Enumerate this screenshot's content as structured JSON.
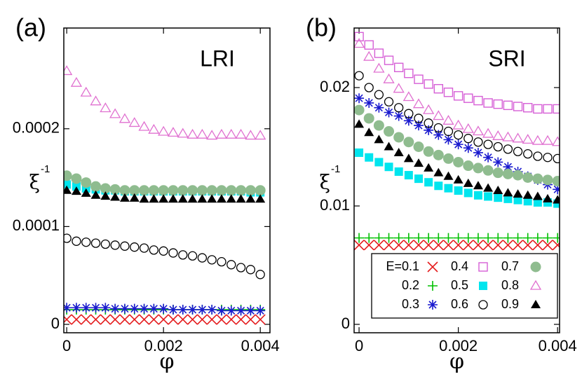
{
  "chart_data": [
    {
      "type": "scatter",
      "panel_label": "(a)",
      "annotation": "LRI",
      "xlabel": "φ",
      "ylabel": "ξ",
      "ylabel_superscript": "-1",
      "xlim": [
        -6e-05,
        0.0042
      ],
      "ylim": [
        -8.6e-06,
        0.000303
      ],
      "xticks": [
        0,
        0.002,
        0.004
      ],
      "yticks": [
        0,
        0.0001,
        0.0002
      ],
      "x": [
        0,
        0.0002,
        0.0004,
        0.0006,
        0.0008,
        0.001,
        0.0012,
        0.0014,
        0.0016,
        0.0018,
        0.002,
        0.0022,
        0.0024,
        0.0026,
        0.0028,
        0.003,
        0.0032,
        0.0034,
        0.0036,
        0.0038,
        0.004
      ],
      "series": [
        {
          "color": "#e41a1c",
          "marker": "x",
          "values": [
            5e-06,
            5e-06,
            5e-06,
            5e-06,
            5e-06,
            5e-06,
            5e-06,
            5e-06,
            5e-06,
            5e-06,
            5e-06,
            5e-06,
            5e-06,
            5e-06,
            5e-06,
            5e-06,
            5e-06,
            5e-06,
            5e-06,
            5e-06,
            5e-06
          ]
        },
        {
          "color": "#00c000",
          "marker": "plus",
          "values": [
            1.5e-05,
            1.5e-05,
            1.5e-05,
            1.5e-05,
            1.5e-05,
            1.5e-05,
            1.5e-05,
            1.5e-05,
            1.5e-05,
            1.5e-05,
            1.5e-05,
            1.5e-05,
            1.5e-05,
            1.5e-05,
            1.5e-05,
            1.5e-05,
            1.5e-05,
            1.5e-05,
            1.5e-05,
            1.5e-05,
            1.5e-05
          ]
        },
        {
          "color": "#1a1acf",
          "marker": "star",
          "values": [
            1.7e-05,
            1.7e-05,
            1.7e-05,
            1.7e-05,
            1.7e-05,
            1.6e-05,
            1.6e-05,
            1.6e-05,
            1.6e-05,
            1.6e-05,
            1.6e-05,
            1.5e-05,
            1.5e-05,
            1.5e-05,
            1.5e-05,
            1.5e-05,
            1.4e-05,
            1.4e-05,
            1.4e-05,
            1.4e-05,
            1.4e-05
          ]
        },
        {
          "color": "#00e5ee",
          "marker": "square",
          "values": [
            0.000143,
            0.000141,
            0.000139,
            0.000138,
            0.000137,
            0.000137,
            0.000136,
            0.000136,
            0.000136,
            0.000136,
            0.000136,
            0.000136,
            0.000136,
            0.000136,
            0.000136,
            0.000136,
            0.000136,
            0.000136,
            0.000136,
            0.000135,
            0.000135
          ]
        },
        {
          "color": "#000000",
          "marker": "circle-open",
          "values": [
            8.8e-05,
            8.5e-05,
            8.4e-05,
            8.3e-05,
            8.2e-05,
            8.1e-05,
            8e-05,
            7.9e-05,
            7.8e-05,
            7.6e-05,
            7.5e-05,
            7.3e-05,
            7.1e-05,
            7e-05,
            6.8e-05,
            6.6e-05,
            6.4e-05,
            6.1e-05,
            5.8e-05,
            5.6e-05,
            5.1e-05
          ]
        },
        {
          "color": "#8fbc8f",
          "marker": "circle",
          "values": [
            0.000152,
            0.000149,
            0.000145,
            0.000141,
            0.000139,
            0.000138,
            0.000137,
            0.000137,
            0.000137,
            0.000137,
            0.000137,
            0.000137,
            0.000137,
            0.000137,
            0.000137,
            0.000137,
            0.000137,
            0.000137,
            0.000137,
            0.000137,
            0.000137
          ]
        },
        {
          "color": "#e070d0",
          "marker": "triangle-open",
          "values": [
            0.000259,
            0.000247,
            0.000237,
            0.000228,
            0.000221,
            0.000215,
            0.00021,
            0.000206,
            0.000202,
            0.000199,
            0.000197,
            0.000196,
            0.000195,
            0.000194,
            0.000194,
            0.000193,
            0.000194,
            0.000194,
            0.000194,
            0.000193,
            0.000193
          ]
        },
        {
          "color": "#000000",
          "marker": "triangle",
          "values": [
            0.000137,
            0.000136,
            0.000134,
            0.000132,
            0.000131,
            0.00013,
            0.000129,
            0.000129,
            0.000128,
            0.000128,
            0.000128,
            0.000128,
            0.000128,
            0.000128,
            0.000128,
            0.000128,
            0.000128,
            0.000128,
            0.000128,
            0.000128,
            0.000128
          ]
        }
      ]
    },
    {
      "type": "scatter",
      "panel_label": "(b)",
      "annotation": "SRI",
      "xlabel": "φ",
      "ylabel": "ξ",
      "ylabel_superscript": "-1",
      "xlim": [
        -0.0001,
        0.00404
      ],
      "ylim": [
        -0.00071,
        0.02503
      ],
      "xticks": [
        0,
        0.002,
        0.004
      ],
      "yticks": [
        0,
        0.01,
        0.02
      ],
      "x": [
        0,
        0.0002,
        0.0004,
        0.0006,
        0.0008,
        0.001,
        0.0012,
        0.0014,
        0.0016,
        0.0018,
        0.002,
        0.0022,
        0.0024,
        0.0026,
        0.0028,
        0.003,
        0.0032,
        0.0034,
        0.0036,
        0.0038,
        0.004
      ],
      "series": [
        {
          "name": "E=0.1",
          "color": "#e41a1c",
          "marker": "x",
          "values": [
            0.0067,
            0.0067,
            0.0067,
            0.0067,
            0.0067,
            0.0067,
            0.0067,
            0.0067,
            0.0067,
            0.0067,
            0.0067,
            0.0067,
            0.0067,
            0.0067,
            0.0067,
            0.0067,
            0.0067,
            0.0067,
            0.0067,
            0.0067,
            0.0067
          ]
        },
        {
          "name": "0.2",
          "color": "#00c000",
          "marker": "plus",
          "values": [
            0.0073,
            0.0073,
            0.0073,
            0.0073,
            0.0073,
            0.0073,
            0.0073,
            0.0073,
            0.0073,
            0.0073,
            0.0073,
            0.0073,
            0.0073,
            0.0073,
            0.0073,
            0.0073,
            0.0073,
            0.0073,
            0.0073,
            0.0073,
            0.0073
          ]
        },
        {
          "name": "0.3",
          "color": "#1a1acf",
          "marker": "star",
          "values": [
            0.0191,
            0.0187,
            0.0183,
            0.0179,
            0.0176,
            0.0172,
            0.0168,
            0.0164,
            0.016,
            0.0156,
            0.0152,
            0.0149,
            0.0145,
            0.0141,
            0.0137,
            0.0133,
            0.0129,
            0.0125,
            0.0122,
            0.0118,
            0.0114
          ]
        },
        {
          "name": "0.4",
          "color": "#d65fd6",
          "marker": "square-open",
          "values": [
            0.0243,
            0.0236,
            0.0229,
            0.0223,
            0.0217,
            0.0212,
            0.0207,
            0.0203,
            0.0199,
            0.0196,
            0.0193,
            0.0191,
            0.0189,
            0.0187,
            0.0186,
            0.0185,
            0.0184,
            0.0183,
            0.0182,
            0.0182,
            0.0182
          ]
        },
        {
          "name": "0.5",
          "color": "#00e5ee",
          "marker": "square",
          "values": [
            0.0145,
            0.0141,
            0.0137,
            0.0133,
            0.0129,
            0.0126,
            0.0123,
            0.012,
            0.0117,
            0.0115,
            0.0113,
            0.0111,
            0.0109,
            0.0108,
            0.0107,
            0.0106,
            0.0105,
            0.0104,
            0.0103,
            0.0103,
            0.0102
          ]
        },
        {
          "name": "0.6",
          "color": "#000000",
          "marker": "circle-open",
          "values": [
            0.021,
            0.02,
            0.0194,
            0.0188,
            0.0183,
            0.0178,
            0.0174,
            0.017,
            0.0166,
            0.0163,
            0.016,
            0.0157,
            0.0154,
            0.0152,
            0.015,
            0.0148,
            0.0146,
            0.0144,
            0.0142,
            0.0141,
            0.014
          ]
        },
        {
          "name": "0.7",
          "color": "#8fbc8f",
          "marker": "circle",
          "values": [
            0.0181,
            0.0174,
            0.0168,
            0.0163,
            0.0158,
            0.0154,
            0.015,
            0.0146,
            0.0143,
            0.014,
            0.0137,
            0.0134,
            0.0132,
            0.013,
            0.0128,
            0.0127,
            0.0126,
            0.0124,
            0.0123,
            0.0122,
            0.0121
          ]
        },
        {
          "name": "0.8",
          "color": "#e070d0",
          "marker": "triangle-open",
          "values": [
            0.0237,
            0.0226,
            0.0216,
            0.0207,
            0.0199,
            0.0192,
            0.0186,
            0.0181,
            0.0176,
            0.0172,
            0.0168,
            0.0165,
            0.0163,
            0.0161,
            0.0159,
            0.0158,
            0.0157,
            0.0156,
            0.0155,
            0.0155,
            0.0154
          ]
        },
        {
          "name": "0.9",
          "color": "#000000",
          "marker": "triangle",
          "values": [
            0.0169,
            0.0162,
            0.0156,
            0.015,
            0.0145,
            0.014,
            0.0136,
            0.0132,
            0.0128,
            0.0125,
            0.0122,
            0.0119,
            0.0117,
            0.0115,
            0.0113,
            0.0111,
            0.011,
            0.0109,
            0.0108,
            0.0106,
            0.0105
          ]
        }
      ]
    }
  ]
}
